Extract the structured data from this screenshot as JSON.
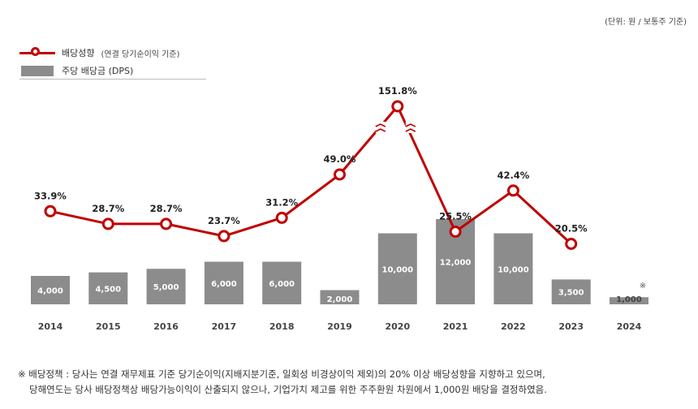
{
  "unit_note": "(단위: 원 / 보통주 기준)",
  "legend": {
    "line_label": "배당성향",
    "line_note": "(연결 당기순이익 기준)",
    "bar_label": "주당 배당금 (DPS)"
  },
  "chart_data": {
    "type": "bar",
    "categories": [
      "2014",
      "2015",
      "2016",
      "2017",
      "2018",
      "2019",
      "2020",
      "2021",
      "2022",
      "2023",
      "2024"
    ],
    "series": [
      {
        "name": "주당 배당금 (DPS)",
        "type": "bar",
        "values": [
          4000,
          4500,
          5000,
          6000,
          6000,
          2000,
          10000,
          12000,
          10000,
          3500,
          1000
        ],
        "value_labels": [
          "4,000",
          "4,500",
          "5,000",
          "6,000",
          "6,000",
          "2,000",
          "10,000",
          "12,000",
          "10,000",
          "3,500",
          "1,000"
        ]
      },
      {
        "name": "배당성향",
        "type": "line",
        "values": [
          33.9,
          28.7,
          28.7,
          23.7,
          31.2,
          49.0,
          151.8,
          25.5,
          42.4,
          20.5,
          null
        ],
        "value_labels": [
          "33.9%",
          "28.7%",
          "28.7%",
          "23.7%",
          "31.2%",
          "49.0%",
          "151.8%",
          "25.5%",
          "42.4%",
          "20.5%",
          ""
        ]
      }
    ],
    "bar_axis_break": "2021 bar overlaps line area",
    "line_axis_break_year": "2020",
    "note_marker_year": "2024",
    "note_marker": "※",
    "colors": {
      "line": "#c00000",
      "bar": "#8c8c8c",
      "bar_label_light": "#ffffff",
      "bar_label_dark": "#444444"
    }
  },
  "footnote": {
    "line1": "※ 배당정책 : 당사는 연결 재무제표 기준 당기순이익(지배지분기준, 일회성 비경상이익 제외)의 20% 이상 배당성향을 지향하고 있으며,",
    "line2": "당해연도는 당사 배당정책상 배당가능이익이 산출되지 않으나, 기업가치 제고를 위한 주주환원 차원에서 1,000원 배당을 결정하였음."
  }
}
